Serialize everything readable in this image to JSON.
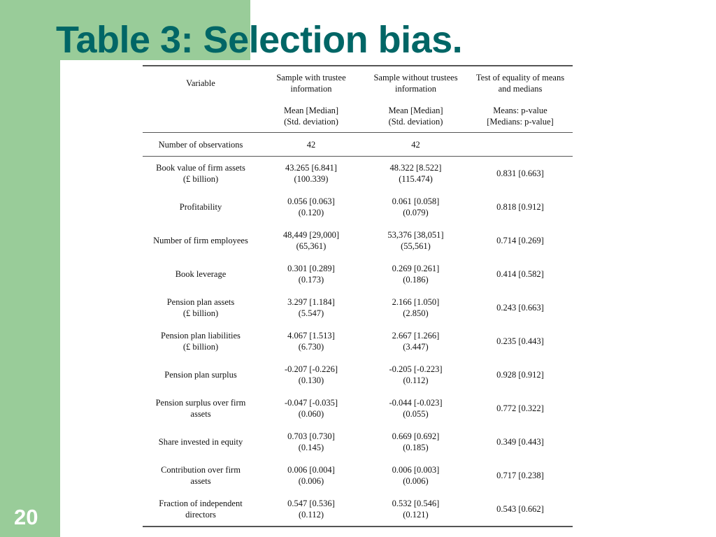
{
  "slide": {
    "title": "Table 3: Selection bias.",
    "page_number": "20"
  },
  "table": {
    "headers": [
      {
        "line1": "Variable",
        "line2": ""
      },
      {
        "line1": "Sample with trustee",
        "line2": "information"
      },
      {
        "line1": "Sample without trustees",
        "line2": "information"
      },
      {
        "line1": "Test of equality of means",
        "line2": "and medians"
      }
    ],
    "subheaders": [
      {
        "line1": "",
        "line2": ""
      },
      {
        "line1": "Mean [Median]",
        "line2": "(Std. deviation)"
      },
      {
        "line1": "Mean [Median]",
        "line2": "(Std. deviation)"
      },
      {
        "line1": "Means: p-value",
        "line2": "[Medians: p-value]"
      }
    ],
    "observations": {
      "label": "Number of observations",
      "with": "42",
      "without": "42",
      "test": ""
    },
    "rows": [
      {
        "var1": "Book value of firm assets",
        "var2": "(£ billion)",
        "with1": "43.265 [6.841]",
        "with2": "(100.339)",
        "without1": "48.322 [8.522]",
        "without2": "(115.474)",
        "test": "0.831 [0.663]"
      },
      {
        "var1": "Profitability",
        "var2": "",
        "with1": "0.056 [0.063]",
        "with2": "(0.120)",
        "without1": "0.061 [0.058]",
        "without2": "(0.079)",
        "test": "0.818 [0.912]"
      },
      {
        "var1": "Number of firm employees",
        "var2": "",
        "with1": "48,449 [29,000]",
        "with2": "(65,361)",
        "without1": "53,376 [38,051]",
        "without2": "(55,561)",
        "test": "0.714  [0.269]"
      },
      {
        "var1": "Book leverage",
        "var2": "",
        "with1": "0.301 [0.289]",
        "with2": "(0.173)",
        "without1": "0.269 [0.261]",
        "without2": "(0.186)",
        "test": "0.414 [0.582]"
      },
      {
        "var1": "Pension plan assets",
        "var2": "(£ billion)",
        "with1": "3.297 [1.184]",
        "with2": "(5.547)",
        "without1": "2.166 [1.050]",
        "without2": "(2.850)",
        "test": "0.243 [0.663]"
      },
      {
        "var1": "Pension plan liabilities",
        "var2": "(£ billion)",
        "with1": "4.067 [1.513]",
        "with2": "(6.730)",
        "without1": "2.667 [1.266]",
        "without2": "(3.447)",
        "test": "0.235 [0.443]"
      },
      {
        "var1": "Pension plan surplus",
        "var2": "",
        "with1": "-0.207 [-0.226]",
        "with2": "(0.130)",
        "without1": "-0.205 [-0.223]",
        "without2": "(0.112)",
        "test": "0.928 [0.912]"
      },
      {
        "var1": "Pension surplus over firm",
        "var2": "assets",
        "with1": "-0.047 [-0.035]",
        "with2": "(0.060)",
        "without1": "-0.044 [-0.023]",
        "without2": "(0.055)",
        "test": "0.772 [0.322]"
      },
      {
        "var1": "Share invested in equity",
        "var2": "",
        "with1": "0.703 [0.730]",
        "with2": "(0.145)",
        "without1": "0.669 [0.692]",
        "without2": "(0.185)",
        "test": "0.349 [0.443]"
      },
      {
        "var1": "Contribution over firm",
        "var2": "assets",
        "with1": "0.006 [0.004]",
        "with2": "(0.006)",
        "without1": "0.006 [0.003]",
        "without2": "(0.006)",
        "test": "0.717 [0.238]"
      },
      {
        "var1": "Fraction of independent",
        "var2": "directors",
        "with1": "0.547 [0.536]",
        "with2": "(0.112)",
        "without1": "0.532 [0.546]",
        "without2": "(0.121)",
        "test": "0.543 [0.662]"
      }
    ]
  },
  "colors": {
    "accent_band": "#99cc99",
    "title": "#006666"
  }
}
